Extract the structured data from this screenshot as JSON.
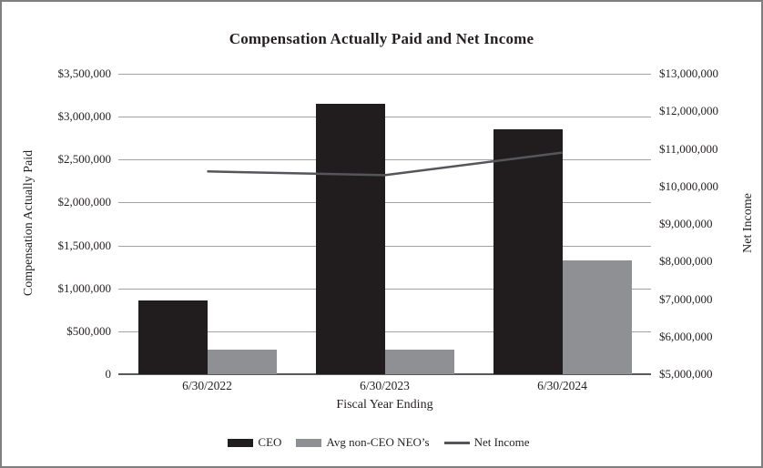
{
  "chart_data": {
    "type": "combo-bar-line",
    "title": "Compensation Actually Paid and Net Income",
    "categories": [
      "6/30/2022",
      "6/30/2023",
      "6/30/2024"
    ],
    "bar_series": [
      {
        "name": "CEO",
        "color": "#211d1e",
        "axis": "left",
        "values": [
          860000,
          3150000,
          2850000
        ]
      },
      {
        "name": "Avg non-CEO NEO’s",
        "color": "#8e9093",
        "axis": "left",
        "values": [
          285000,
          285000,
          1330000
        ]
      }
    ],
    "line_series": [
      {
        "name": "Net Income",
        "color": "#55565a",
        "axis": "right",
        "values": [
          10400000,
          10300000,
          10900000
        ]
      }
    ],
    "xlabel": "Fiscal Year Ending",
    "left_axis": {
      "title": "Compensation Actually Paid",
      "min": 0,
      "max": 3500000,
      "step": 500000,
      "tick_labels": [
        "$3,500,000",
        "$3,000,000",
        "$2,500,000",
        "$2,000,000",
        "$1,500,000",
        "$1,000,000",
        "$500,000",
        "0"
      ]
    },
    "right_axis": {
      "title": "Net Income",
      "min": 5000000,
      "max": 13000000,
      "step": 1000000,
      "tick_labels": [
        "$13,000,000",
        "$12,000,000",
        "$11,000,000",
        "$10,000,000",
        "$9,000,000",
        "$8,000,000",
        "$7,000,000",
        "$6,000,000",
        "$5,000,000"
      ]
    },
    "grid": true,
    "legend_position": "bottom",
    "colors": {
      "gridline": "#a3a3a3",
      "axis_line": "#595a5c",
      "text": "#231f20",
      "border": "#7f7f7f"
    }
  }
}
